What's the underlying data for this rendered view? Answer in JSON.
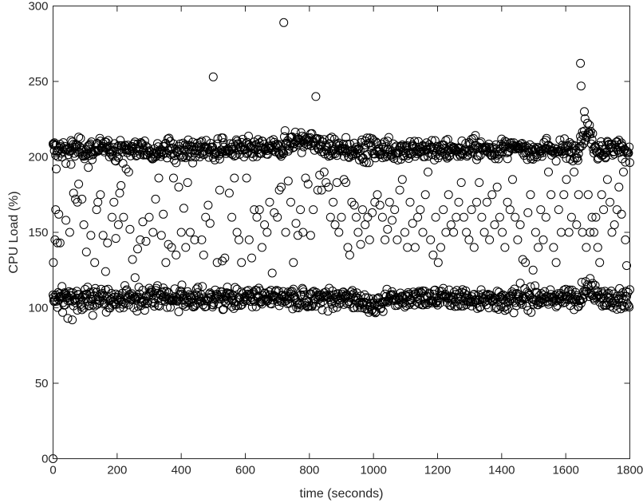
{
  "chart_data": {
    "type": "scatter",
    "title": "",
    "xlabel": "time (seconds)",
    "ylabel": "CPU Load (%)",
    "xlim": [
      0,
      1800
    ],
    "ylim": [
      0,
      300
    ],
    "xticks": [
      0,
      200,
      400,
      600,
      800,
      1000,
      1200,
      1400,
      1600,
      1800
    ],
    "yticks": [
      0,
      50,
      100,
      150,
      200,
      250,
      300
    ],
    "grid": false,
    "marker": "open-circle",
    "marker_color": "#000000",
    "sample_interval_seconds": 2,
    "bands": [
      {
        "name": "upper",
        "center": 205,
        "spread": 6
      },
      {
        "name": "lower",
        "center": 106,
        "spread": 6
      }
    ],
    "points": [
      [
        0,
        0
      ],
      [
        1,
        130
      ],
      [
        1,
        208
      ],
      [
        2,
        107
      ],
      [
        4,
        204
      ],
      [
        6,
        145
      ],
      [
        8,
        165
      ],
      [
        10,
        192
      ],
      [
        14,
        143
      ],
      [
        18,
        162
      ],
      [
        22,
        143
      ],
      [
        30,
        97
      ],
      [
        36,
        110
      ],
      [
        40,
        158
      ],
      [
        46,
        93
      ],
      [
        52,
        150
      ],
      [
        56,
        195
      ],
      [
        60,
        92
      ],
      [
        64,
        176
      ],
      [
        70,
        172
      ],
      [
        76,
        170
      ],
      [
        80,
        182
      ],
      [
        90,
        172
      ],
      [
        96,
        155
      ],
      [
        104,
        137
      ],
      [
        110,
        193
      ],
      [
        118,
        148
      ],
      [
        124,
        95
      ],
      [
        130,
        130
      ],
      [
        136,
        165
      ],
      [
        140,
        170
      ],
      [
        148,
        175
      ],
      [
        156,
        148
      ],
      [
        164,
        124
      ],
      [
        170,
        143
      ],
      [
        176,
        200
      ],
      [
        184,
        160
      ],
      [
        190,
        170
      ],
      [
        196,
        146
      ],
      [
        204,
        155
      ],
      [
        208,
        176
      ],
      [
        212,
        181
      ],
      [
        220,
        160
      ],
      [
        228,
        192
      ],
      [
        236,
        190
      ],
      [
        240,
        152
      ],
      [
        248,
        132
      ],
      [
        256,
        120
      ],
      [
        264,
        139
      ],
      [
        272,
        145
      ],
      [
        280,
        157
      ],
      [
        290,
        144
      ],
      [
        300,
        160
      ],
      [
        306,
        110
      ],
      [
        312,
        150
      ],
      [
        320,
        172
      ],
      [
        330,
        186
      ],
      [
        338,
        148
      ],
      [
        344,
        162
      ],
      [
        352,
        130
      ],
      [
        360,
        142
      ],
      [
        370,
        140
      ],
      [
        376,
        186
      ],
      [
        384,
        135
      ],
      [
        392,
        180
      ],
      [
        400,
        150
      ],
      [
        408,
        166
      ],
      [
        414,
        140
      ],
      [
        420,
        183
      ],
      [
        428,
        150
      ],
      [
        436,
        196
      ],
      [
        442,
        145
      ],
      [
        450,
        110
      ],
      [
        458,
        200
      ],
      [
        464,
        145
      ],
      [
        470,
        135
      ],
      [
        476,
        160
      ],
      [
        484,
        168
      ],
      [
        490,
        156
      ],
      [
        500,
        253
      ],
      [
        505,
        198
      ],
      [
        512,
        130
      ],
      [
        520,
        178
      ],
      [
        528,
        131
      ],
      [
        536,
        133
      ],
      [
        542,
        110
      ],
      [
        550,
        176
      ],
      [
        558,
        160
      ],
      [
        566,
        186
      ],
      [
        574,
        150
      ],
      [
        580,
        145
      ],
      [
        588,
        130
      ],
      [
        596,
        200
      ],
      [
        604,
        186
      ],
      [
        612,
        145
      ],
      [
        620,
        133
      ],
      [
        628,
        165
      ],
      [
        636,
        160
      ],
      [
        644,
        165
      ],
      [
        652,
        140
      ],
      [
        660,
        155
      ],
      [
        668,
        150
      ],
      [
        676,
        170
      ],
      [
        684,
        123
      ],
      [
        690,
        163
      ],
      [
        700,
        160
      ],
      [
        706,
        178
      ],
      [
        712,
        180
      ],
      [
        720,
        289
      ],
      [
        726,
        150
      ],
      [
        734,
        184
      ],
      [
        742,
        170
      ],
      [
        750,
        130
      ],
      [
        758,
        156
      ],
      [
        764,
        148
      ],
      [
        772,
        165
      ],
      [
        780,
        150
      ],
      [
        788,
        186
      ],
      [
        796,
        182
      ],
      [
        804,
        148
      ],
      [
        812,
        165
      ],
      [
        820,
        240
      ],
      [
        826,
        178
      ],
      [
        832,
        188
      ],
      [
        838,
        178
      ],
      [
        846,
        190
      ],
      [
        852,
        183
      ],
      [
        860,
        180
      ],
      [
        866,
        160
      ],
      [
        874,
        170
      ],
      [
        880,
        155
      ],
      [
        886,
        183
      ],
      [
        892,
        150
      ],
      [
        900,
        160
      ],
      [
        908,
        185
      ],
      [
        914,
        183
      ],
      [
        920,
        140
      ],
      [
        926,
        135
      ],
      [
        932,
        170
      ],
      [
        940,
        168
      ],
      [
        946,
        160
      ],
      [
        952,
        150
      ],
      [
        960,
        142
      ],
      [
        966,
        165
      ],
      [
        974,
        155
      ],
      [
        982,
        160
      ],
      [
        988,
        145
      ],
      [
        996,
        163
      ],
      [
        1004,
        170
      ],
      [
        1012,
        175
      ],
      [
        1020,
        168
      ],
      [
        1028,
        160
      ],
      [
        1036,
        145
      ],
      [
        1044,
        152
      ],
      [
        1050,
        170
      ],
      [
        1058,
        158
      ],
      [
        1066,
        165
      ],
      [
        1074,
        145
      ],
      [
        1082,
        178
      ],
      [
        1090,
        185
      ],
      [
        1098,
        150
      ],
      [
        1106,
        140
      ],
      [
        1114,
        170
      ],
      [
        1122,
        156
      ],
      [
        1130,
        140
      ],
      [
        1138,
        160
      ],
      [
        1146,
        165
      ],
      [
        1154,
        150
      ],
      [
        1162,
        175
      ],
      [
        1170,
        190
      ],
      [
        1178,
        145
      ],
      [
        1186,
        135
      ],
      [
        1194,
        160
      ],
      [
        1202,
        130
      ],
      [
        1210,
        140
      ],
      [
        1218,
        165
      ],
      [
        1226,
        150
      ],
      [
        1234,
        175
      ],
      [
        1242,
        155
      ],
      [
        1250,
        150
      ],
      [
        1258,
        160
      ],
      [
        1266,
        170
      ],
      [
        1274,
        183
      ],
      [
        1282,
        160
      ],
      [
        1290,
        150
      ],
      [
        1298,
        145
      ],
      [
        1306,
        165
      ],
      [
        1314,
        140
      ],
      [
        1322,
        170
      ],
      [
        1330,
        183
      ],
      [
        1338,
        160
      ],
      [
        1346,
        150
      ],
      [
        1354,
        170
      ],
      [
        1362,
        145
      ],
      [
        1370,
        175
      ],
      [
        1378,
        155
      ],
      [
        1386,
        180
      ],
      [
        1394,
        160
      ],
      [
        1402,
        150
      ],
      [
        1410,
        140
      ],
      [
        1418,
        170
      ],
      [
        1426,
        165
      ],
      [
        1434,
        185
      ],
      [
        1442,
        160
      ],
      [
        1450,
        145
      ],
      [
        1458,
        155
      ],
      [
        1466,
        132
      ],
      [
        1474,
        130
      ],
      [
        1482,
        163
      ],
      [
        1490,
        175
      ],
      [
        1498,
        125
      ],
      [
        1506,
        150
      ],
      [
        1514,
        140
      ],
      [
        1522,
        165
      ],
      [
        1530,
        145
      ],
      [
        1538,
        160
      ],
      [
        1546,
        190
      ],
      [
        1554,
        175
      ],
      [
        1562,
        140
      ],
      [
        1570,
        130
      ],
      [
        1578,
        165
      ],
      [
        1586,
        150
      ],
      [
        1594,
        175
      ],
      [
        1602,
        185
      ],
      [
        1610,
        150
      ],
      [
        1618,
        160
      ],
      [
        1626,
        190
      ],
      [
        1634,
        155
      ],
      [
        1640,
        175
      ],
      [
        1646,
        262
      ],
      [
        1648,
        247
      ],
      [
        1652,
        150
      ],
      [
        1658,
        230
      ],
      [
        1664,
        140
      ],
      [
        1670,
        175
      ],
      [
        1676,
        150
      ],
      [
        1682,
        160
      ],
      [
        1688,
        150
      ],
      [
        1694,
        160
      ],
      [
        1700,
        140
      ],
      [
        1706,
        130
      ],
      [
        1712,
        175
      ],
      [
        1718,
        165
      ],
      [
        1724,
        200
      ],
      [
        1730,
        185
      ],
      [
        1738,
        170
      ],
      [
        1744,
        150
      ],
      [
        1752,
        155
      ],
      [
        1760,
        165
      ],
      [
        1766,
        180
      ],
      [
        1774,
        162
      ],
      [
        1780,
        190
      ],
      [
        1786,
        145
      ],
      [
        1790,
        128
      ]
    ]
  }
}
